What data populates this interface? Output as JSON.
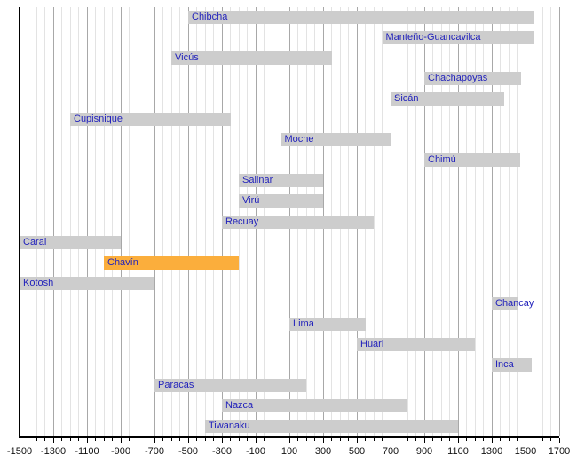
{
  "chart_data": {
    "type": "bar",
    "variant": "horizontal-gantt-timeline",
    "title": "",
    "xlabel": "",
    "ylabel": "",
    "grid": true,
    "background": "#ffffff",
    "x_axis": {
      "min": -1500,
      "max": 1700,
      "major_tick_step": 200,
      "minor_tick_step": 50,
      "tick_labels": [
        "-1500",
        "-1300",
        "-1100",
        "-900",
        "-700",
        "-500",
        "-300",
        "-100",
        "100",
        "300",
        "500",
        "700",
        "900",
        "1100",
        "1300",
        "1500",
        "1700"
      ]
    },
    "cultures": [
      {
        "name": "Chibcha",
        "start": -500,
        "end": 1550,
        "highlight": false
      },
      {
        "name": "Manteño-Guancavilca",
        "start": 650,
        "end": 1550,
        "highlight": false
      },
      {
        "name": "Vicús",
        "start": -600,
        "end": 350,
        "highlight": false
      },
      {
        "name": "Chachapoyas",
        "start": 900,
        "end": 1475,
        "highlight": false
      },
      {
        "name": "Sicán",
        "start": 700,
        "end": 1375,
        "highlight": false
      },
      {
        "name": "Cupisnique",
        "start": -1200,
        "end": -250,
        "highlight": false
      },
      {
        "name": "Moche",
        "start": 50,
        "end": 700,
        "highlight": false
      },
      {
        "name": "Chimú",
        "start": 900,
        "end": 1470,
        "highlight": false
      },
      {
        "name": "Salinar",
        "start": -200,
        "end": 300,
        "highlight": false
      },
      {
        "name": "Virú",
        "start": -200,
        "end": 300,
        "highlight": false
      },
      {
        "name": "Recuay",
        "start": -300,
        "end": 600,
        "highlight": false
      },
      {
        "name": "Caral",
        "start": -1500,
        "end": -900,
        "highlight": false
      },
      {
        "name": "Chavín",
        "start": -1000,
        "end": -200,
        "highlight": true
      },
      {
        "name": "Kotosh",
        "start": -1500,
        "end": -700,
        "highlight": false
      },
      {
        "name": "Chancay",
        "start": 1300,
        "end": 1450,
        "highlight": false
      },
      {
        "name": "Lima",
        "start": 100,
        "end": 550,
        "highlight": false
      },
      {
        "name": "Huari",
        "start": 500,
        "end": 1200,
        "highlight": false
      },
      {
        "name": "Inca",
        "start": 1300,
        "end": 1535,
        "highlight": false
      },
      {
        "name": "Paracas",
        "start": -700,
        "end": 200,
        "highlight": false
      },
      {
        "name": "Nazca",
        "start": -300,
        "end": 800,
        "highlight": false
      },
      {
        "name": "Tiwanaku",
        "start": -400,
        "end": 1100,
        "highlight": false
      }
    ],
    "colors": {
      "bar": "#cdcdcd",
      "highlight": "#fbae3c",
      "label": "#2222bb",
      "grid_major": "#a8a8a8",
      "grid_minor": "#e3e3e3",
      "axis": "#000000"
    }
  }
}
